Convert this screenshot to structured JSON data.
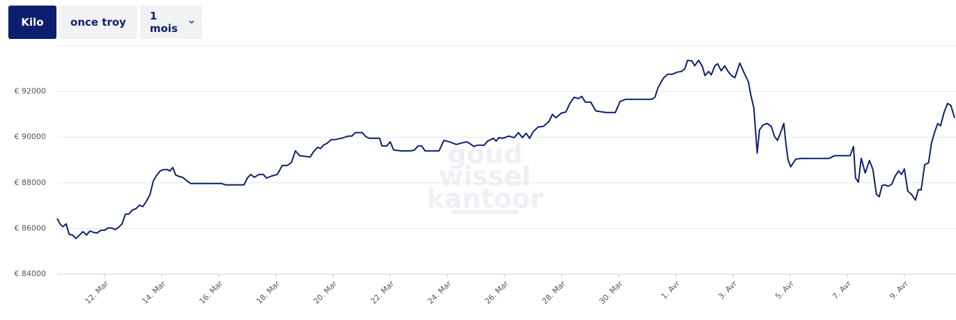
{
  "controls": {
    "unit_kilo": "Kilo",
    "unit_ounce": "once troy",
    "period": "1 mois"
  },
  "watermark": [
    "goud",
    "wissel",
    "kantoor"
  ],
  "chart_data": {
    "type": "line",
    "color": "#0b1f6e",
    "grid": true,
    "xlim": [
      10.34,
      41.76
    ],
    "ylim": [
      84000,
      94000
    ],
    "yticks": [
      {
        "value": 84000,
        "label": "€ 84000"
      },
      {
        "value": 86000,
        "label": "€ 86000"
      },
      {
        "value": 88000,
        "label": "€ 88000"
      },
      {
        "value": 90000,
        "label": "€ 90000"
      },
      {
        "value": 92000,
        "label": "€ 92000"
      }
    ],
    "xticks": [
      {
        "value": 12,
        "label": "12. Mar"
      },
      {
        "value": 14,
        "label": "14. Mar"
      },
      {
        "value": 16,
        "label": "16. Mar"
      },
      {
        "value": 18,
        "label": "18. Mar"
      },
      {
        "value": 20,
        "label": "20. Mar"
      },
      {
        "value": 22,
        "label": "22. Mar"
      },
      {
        "value": 24,
        "label": "24. Mar"
      },
      {
        "value": 26,
        "label": "26. Mar"
      },
      {
        "value": 28,
        "label": "28. Mar"
      },
      {
        "value": 30,
        "label": "30. Mar"
      },
      {
        "value": 32,
        "label": "1. Avr"
      },
      {
        "value": 34,
        "label": "3. Avr"
      },
      {
        "value": 36,
        "label": "5. Avr"
      },
      {
        "value": 38,
        "label": "7. Avr"
      },
      {
        "value": 40,
        "label": "9. Avr"
      }
    ],
    "x": [
      10.34,
      10.44,
      10.54,
      10.66,
      10.76,
      10.88,
      11.0,
      11.12,
      11.24,
      11.37,
      11.49,
      11.61,
      11.73,
      11.88,
      12.0,
      12.12,
      12.24,
      12.37,
      12.49,
      12.61,
      12.73,
      12.85,
      12.98,
      13.1,
      13.22,
      13.34,
      13.46,
      13.59,
      13.71,
      13.83,
      13.95,
      14.07,
      14.2,
      14.29,
      14.39,
      14.49,
      14.63,
      14.73,
      14.88,
      15.02,
      15.17,
      15.66,
      16.1,
      16.24,
      16.63,
      16.88,
      17.0,
      17.12,
      17.24,
      17.41,
      17.56,
      17.66,
      17.85,
      18.05,
      18.22,
      18.39,
      18.54,
      18.68,
      18.83,
      19.02,
      19.2,
      19.32,
      19.46,
      19.56,
      19.66,
      19.8,
      19.93,
      20.05,
      20.29,
      20.54,
      20.66,
      20.78,
      21.02,
      21.15,
      21.27,
      21.51,
      21.63,
      21.71,
      21.88,
      22.0,
      22.12,
      22.37,
      22.73,
      22.85,
      22.98,
      23.1,
      23.22,
      23.71,
      23.88,
      24.07,
      24.32,
      24.49,
      24.68,
      24.8,
      24.93,
      25.05,
      25.29,
      25.41,
      25.61,
      25.71,
      25.8,
      25.95,
      26.15,
      26.34,
      26.49,
      26.63,
      26.76,
      26.88,
      27.0,
      27.17,
      27.37,
      27.56,
      27.68,
      27.8,
      28.0,
      28.15,
      28.29,
      28.44,
      28.59,
      28.71,
      28.83,
      29.02,
      29.2,
      29.56,
      29.88,
      30.05,
      30.24,
      31.15,
      31.27,
      31.37,
      31.56,
      31.71,
      31.88,
      32.05,
      32.2,
      32.32,
      32.41,
      32.56,
      32.66,
      32.8,
      32.93,
      33.02,
      33.15,
      33.24,
      33.37,
      33.46,
      33.59,
      33.71,
      33.83,
      33.95,
      34.07,
      34.24,
      34.39,
      34.54,
      34.63,
      34.73,
      34.85,
      34.93,
      35.05,
      35.2,
      35.34,
      35.46,
      35.56,
      35.66,
      35.78,
      35.85,
      35.93,
      36.02,
      36.2,
      36.39,
      37.37,
      37.56,
      38.1,
      38.22,
      38.29,
      38.39,
      38.49,
      38.63,
      38.78,
      38.9,
      39.02,
      39.12,
      39.22,
      39.32,
      39.44,
      39.56,
      39.68,
      39.8,
      39.9,
      40.0,
      40.12,
      40.24,
      40.39,
      40.49,
      40.59,
      40.71,
      40.85,
      40.95,
      41.07,
      41.17,
      41.27,
      41.39,
      41.51,
      41.63,
      41.76
    ],
    "series": [
      {
        "values": [
          86440,
          86200,
          86080,
          86200,
          85740,
          85710,
          85560,
          85710,
          85860,
          85710,
          85890,
          85830,
          85800,
          85920,
          85920,
          86020,
          86020,
          85950,
          86050,
          86200,
          86630,
          86630,
          86810,
          86870,
          87020,
          86960,
          87180,
          87480,
          88090,
          88340,
          88520,
          88580,
          88580,
          88520,
          88670,
          88340,
          88270,
          88240,
          88090,
          87970,
          87970,
          87970,
          87970,
          87910,
          87910,
          87910,
          88210,
          88370,
          88240,
          88370,
          88370,
          88210,
          88300,
          88370,
          88760,
          88760,
          88880,
          89400,
          89190,
          89160,
          89130,
          89370,
          89560,
          89500,
          89650,
          89740,
          89890,
          89890,
          89950,
          90050,
          90050,
          90200,
          90200,
          90020,
          89950,
          89950,
          89950,
          89620,
          89620,
          89800,
          89440,
          89400,
          89400,
          89440,
          89620,
          89620,
          89400,
          89400,
          89860,
          89800,
          89680,
          89740,
          89800,
          89710,
          89590,
          89650,
          89650,
          89830,
          89950,
          89830,
          89980,
          89950,
          90050,
          89980,
          90200,
          89980,
          90170,
          89950,
          90230,
          90440,
          90480,
          90690,
          91000,
          90850,
          91060,
          91100,
          91480,
          91750,
          91690,
          91790,
          91540,
          91540,
          91150,
          91080,
          91080,
          91570,
          91660,
          91660,
          91750,
          92150,
          92580,
          92760,
          92760,
          92850,
          92880,
          93010,
          93370,
          93340,
          93130,
          93370,
          93100,
          92700,
          92880,
          92730,
          93130,
          93220,
          92910,
          93130,
          92880,
          92700,
          92610,
          93250,
          92820,
          92430,
          91820,
          91300,
          89310,
          90320,
          90530,
          90600,
          90480,
          90020,
          89860,
          90170,
          90600,
          89770,
          89010,
          88700,
          89040,
          89070,
          89070,
          89190,
          89190,
          89590,
          88210,
          88030,
          89070,
          88430,
          88980,
          88580,
          87510,
          87390,
          87880,
          87910,
          87850,
          87940,
          88300,
          88520,
          88370,
          88610,
          87630,
          87510,
          87240,
          87700,
          87690,
          88790,
          88880,
          89740,
          90260,
          90600,
          90500,
          91080,
          91480,
          91390,
          90840
        ]
      }
    ]
  }
}
